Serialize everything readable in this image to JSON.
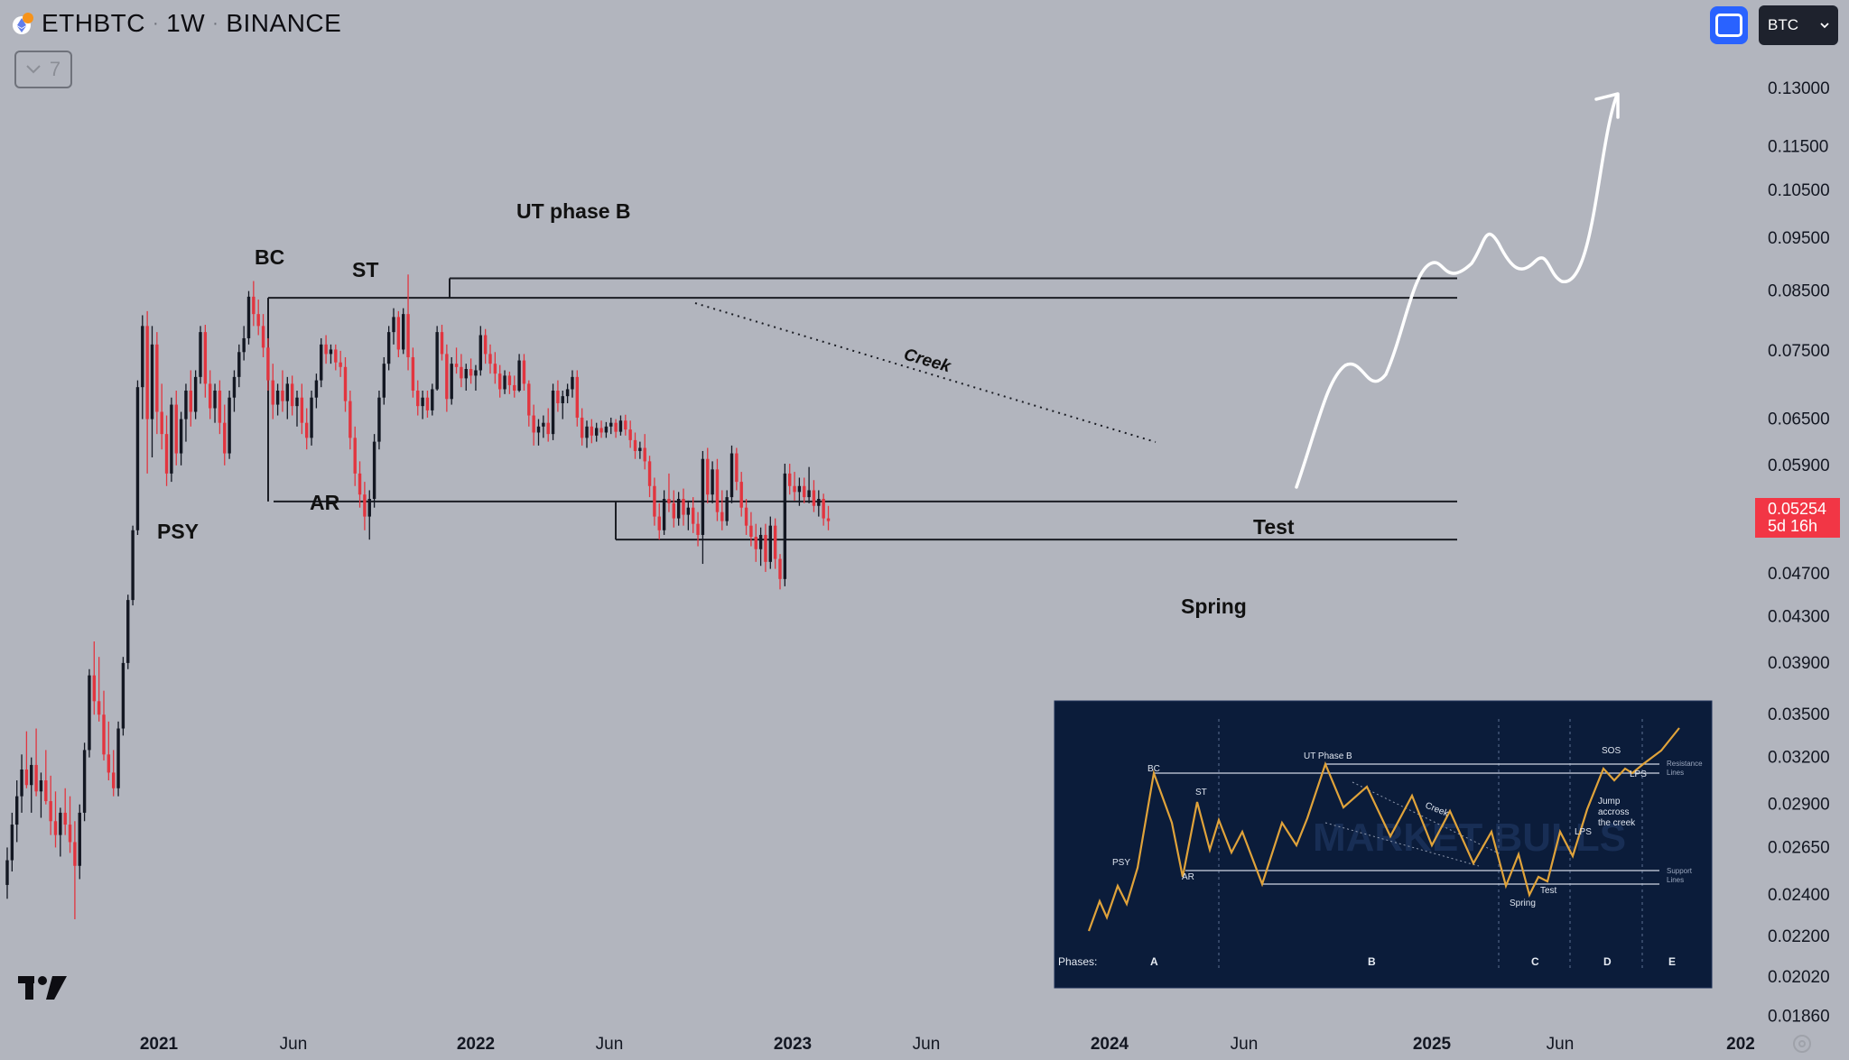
{
  "header": {
    "symbol": "ETHBTC",
    "interval": "1W",
    "exchange": "BINANCE",
    "coin_icon": "ethereum-icon",
    "collapse_count": "7"
  },
  "toolbar": {
    "fullscreen_icon": "square-frame-icon",
    "currency_select": "BTC",
    "accent": "#2962ff"
  },
  "price_tag": {
    "price": "0.05254",
    "countdown": "5d 16h",
    "color": "#f23645"
  },
  "chart_data": {
    "type": "candlestick",
    "symbol": "ETHBTC",
    "interval": "1W",
    "y_scale": "log",
    "ylim": [
      0.0178,
      0.145
    ],
    "y_ticks": [
      "0.13000",
      "0.11500",
      "0.10500",
      "0.09500",
      "0.08500",
      "0.07500",
      "0.06500",
      "0.05900",
      "0.04700",
      "0.04300",
      "0.03900",
      "0.03500",
      "0.03200",
      "0.02900",
      "0.02650",
      "0.02400",
      "0.02200",
      "0.02020",
      "0.01860"
    ],
    "x_ticks": [
      "2021",
      "Jun",
      "2022",
      "Jun",
      "2023",
      "Jun",
      "2024",
      "Jun",
      "2025",
      "Jun",
      "202"
    ],
    "up_color": "#131722",
    "down_color": "#e2353f",
    "candles": [
      {
        "o": 0.0245,
        "h": 0.0265,
        "l": 0.0238,
        "c": 0.0258
      },
      {
        "o": 0.0258,
        "h": 0.0285,
        "l": 0.0252,
        "c": 0.0278
      },
      {
        "o": 0.0278,
        "h": 0.0305,
        "l": 0.0268,
        "c": 0.0295
      },
      {
        "o": 0.0295,
        "h": 0.0322,
        "l": 0.0285,
        "c": 0.0312
      },
      {
        "o": 0.0312,
        "h": 0.0338,
        "l": 0.03,
        "c": 0.0302
      },
      {
        "o": 0.0302,
        "h": 0.032,
        "l": 0.0285,
        "c": 0.0315
      },
      {
        "o": 0.0315,
        "h": 0.034,
        "l": 0.0295,
        "c": 0.0298
      },
      {
        "o": 0.0298,
        "h": 0.031,
        "l": 0.0282,
        "c": 0.0305
      },
      {
        "o": 0.0305,
        "h": 0.0325,
        "l": 0.029,
        "c": 0.0292
      },
      {
        "o": 0.0292,
        "h": 0.0308,
        "l": 0.0272,
        "c": 0.028
      },
      {
        "o": 0.028,
        "h": 0.0298,
        "l": 0.0265,
        "c": 0.0272
      },
      {
        "o": 0.0272,
        "h": 0.0288,
        "l": 0.026,
        "c": 0.0285
      },
      {
        "o": 0.0285,
        "h": 0.03,
        "l": 0.0272,
        "c": 0.0278
      },
      {
        "o": 0.0278,
        "h": 0.0295,
        "l": 0.0262,
        "c": 0.0268
      },
      {
        "o": 0.0268,
        "h": 0.028,
        "l": 0.0228,
        "c": 0.0255
      },
      {
        "o": 0.0255,
        "h": 0.029,
        "l": 0.0248,
        "c": 0.0285
      },
      {
        "o": 0.0285,
        "h": 0.033,
        "l": 0.028,
        "c": 0.0325
      },
      {
        "o": 0.0325,
        "h": 0.0385,
        "l": 0.032,
        "c": 0.038
      },
      {
        "o": 0.038,
        "h": 0.0408,
        "l": 0.035,
        "c": 0.036
      },
      {
        "o": 0.036,
        "h": 0.0395,
        "l": 0.0345,
        "c": 0.035
      },
      {
        "o": 0.035,
        "h": 0.0368,
        "l": 0.0318,
        "c": 0.0322
      },
      {
        "o": 0.0322,
        "h": 0.0345,
        "l": 0.0305,
        "c": 0.031
      },
      {
        "o": 0.031,
        "h": 0.0325,
        "l": 0.0295,
        "c": 0.03
      },
      {
        "o": 0.03,
        "h": 0.0345,
        "l": 0.0295,
        "c": 0.034
      },
      {
        "o": 0.034,
        "h": 0.0395,
        "l": 0.0335,
        "c": 0.039
      },
      {
        "o": 0.039,
        "h": 0.045,
        "l": 0.0385,
        "c": 0.0445
      },
      {
        "o": 0.0445,
        "h": 0.052,
        "l": 0.044,
        "c": 0.0515
      },
      {
        "o": 0.0515,
        "h": 0.0705,
        "l": 0.051,
        "c": 0.0695
      },
      {
        "o": 0.0695,
        "h": 0.0808,
        "l": 0.065,
        "c": 0.079
      },
      {
        "o": 0.079,
        "h": 0.0815,
        "l": 0.058,
        "c": 0.065
      },
      {
        "o": 0.065,
        "h": 0.079,
        "l": 0.06,
        "c": 0.076
      },
      {
        "o": 0.076,
        "h": 0.078,
        "l": 0.063,
        "c": 0.066
      },
      {
        "o": 0.066,
        "h": 0.07,
        "l": 0.061,
        "c": 0.063
      },
      {
        "o": 0.063,
        "h": 0.0655,
        "l": 0.0565,
        "c": 0.058
      },
      {
        "o": 0.058,
        "h": 0.068,
        "l": 0.057,
        "c": 0.067
      },
      {
        "o": 0.067,
        "h": 0.069,
        "l": 0.059,
        "c": 0.0605
      },
      {
        "o": 0.0605,
        "h": 0.066,
        "l": 0.059,
        "c": 0.065
      },
      {
        "o": 0.065,
        "h": 0.07,
        "l": 0.062,
        "c": 0.069
      },
      {
        "o": 0.069,
        "h": 0.072,
        "l": 0.064,
        "c": 0.066
      },
      {
        "o": 0.066,
        "h": 0.072,
        "l": 0.065,
        "c": 0.071
      },
      {
        "o": 0.071,
        "h": 0.079,
        "l": 0.07,
        "c": 0.078
      },
      {
        "o": 0.078,
        "h": 0.0792,
        "l": 0.068,
        "c": 0.07
      },
      {
        "o": 0.07,
        "h": 0.072,
        "l": 0.065,
        "c": 0.0665
      },
      {
        "o": 0.0665,
        "h": 0.07,
        "l": 0.0645,
        "c": 0.069
      },
      {
        "o": 0.069,
        "h": 0.0705,
        "l": 0.063,
        "c": 0.0645
      },
      {
        "o": 0.0645,
        "h": 0.067,
        "l": 0.059,
        "c": 0.0605
      },
      {
        "o": 0.0605,
        "h": 0.069,
        "l": 0.0598,
        "c": 0.068
      },
      {
        "o": 0.068,
        "h": 0.072,
        "l": 0.066,
        "c": 0.071
      },
      {
        "o": 0.071,
        "h": 0.076,
        "l": 0.0695,
        "c": 0.0748
      },
      {
        "o": 0.0748,
        "h": 0.079,
        "l": 0.0735,
        "c": 0.077
      },
      {
        "o": 0.077,
        "h": 0.085,
        "l": 0.076,
        "c": 0.084
      },
      {
        "o": 0.084,
        "h": 0.0868,
        "l": 0.079,
        "c": 0.081
      },
      {
        "o": 0.081,
        "h": 0.0835,
        "l": 0.0775,
        "c": 0.079
      },
      {
        "o": 0.079,
        "h": 0.081,
        "l": 0.074,
        "c": 0.0755
      },
      {
        "o": 0.0755,
        "h": 0.077,
        "l": 0.069,
        "c": 0.0705
      },
      {
        "o": 0.0705,
        "h": 0.073,
        "l": 0.065,
        "c": 0.067
      },
      {
        "o": 0.067,
        "h": 0.07,
        "l": 0.0655,
        "c": 0.069
      },
      {
        "o": 0.069,
        "h": 0.072,
        "l": 0.066,
        "c": 0.0675
      },
      {
        "o": 0.0675,
        "h": 0.071,
        "l": 0.065,
        "c": 0.07
      },
      {
        "o": 0.07,
        "h": 0.0712,
        "l": 0.0655,
        "c": 0.0668
      },
      {
        "o": 0.0668,
        "h": 0.069,
        "l": 0.064,
        "c": 0.068
      },
      {
        "o": 0.068,
        "h": 0.07,
        "l": 0.063,
        "c": 0.0645
      },
      {
        "o": 0.0645,
        "h": 0.0665,
        "l": 0.061,
        "c": 0.0625
      },
      {
        "o": 0.0625,
        "h": 0.069,
        "l": 0.0615,
        "c": 0.068
      },
      {
        "o": 0.068,
        "h": 0.0715,
        "l": 0.0665,
        "c": 0.0705
      },
      {
        "o": 0.0705,
        "h": 0.077,
        "l": 0.0695,
        "c": 0.076
      },
      {
        "o": 0.076,
        "h": 0.0775,
        "l": 0.073,
        "c": 0.0745
      },
      {
        "o": 0.0745,
        "h": 0.076,
        "l": 0.073,
        "c": 0.0752
      },
      {
        "o": 0.0752,
        "h": 0.076,
        "l": 0.072,
        "c": 0.0732
      },
      {
        "o": 0.0732,
        "h": 0.075,
        "l": 0.071,
        "c": 0.0725
      },
      {
        "o": 0.0725,
        "h": 0.074,
        "l": 0.066,
        "c": 0.0675
      },
      {
        "o": 0.0675,
        "h": 0.069,
        "l": 0.061,
        "c": 0.0625
      },
      {
        "o": 0.0625,
        "h": 0.064,
        "l": 0.0565,
        "c": 0.058
      },
      {
        "o": 0.058,
        "h": 0.0595,
        "l": 0.054,
        "c": 0.0555
      },
      {
        "o": 0.0555,
        "h": 0.057,
        "l": 0.0515,
        "c": 0.053
      },
      {
        "o": 0.053,
        "h": 0.056,
        "l": 0.0505,
        "c": 0.055
      },
      {
        "o": 0.055,
        "h": 0.063,
        "l": 0.054,
        "c": 0.062
      },
      {
        "o": 0.062,
        "h": 0.069,
        "l": 0.061,
        "c": 0.068
      },
      {
        "o": 0.068,
        "h": 0.074,
        "l": 0.067,
        "c": 0.073
      },
      {
        "o": 0.073,
        "h": 0.079,
        "l": 0.072,
        "c": 0.078
      },
      {
        "o": 0.078,
        "h": 0.082,
        "l": 0.076,
        "c": 0.0805
      },
      {
        "o": 0.0805,
        "h": 0.0815,
        "l": 0.074,
        "c": 0.0752
      },
      {
        "o": 0.0752,
        "h": 0.082,
        "l": 0.0745,
        "c": 0.081
      },
      {
        "o": 0.081,
        "h": 0.088,
        "l": 0.072,
        "c": 0.074
      },
      {
        "o": 0.074,
        "h": 0.0755,
        "l": 0.068,
        "c": 0.069
      },
      {
        "o": 0.069,
        "h": 0.0705,
        "l": 0.0655,
        "c": 0.0668
      },
      {
        "o": 0.0668,
        "h": 0.069,
        "l": 0.065,
        "c": 0.068
      },
      {
        "o": 0.068,
        "h": 0.069,
        "l": 0.0652,
        "c": 0.0662
      },
      {
        "o": 0.0662,
        "h": 0.07,
        "l": 0.0655,
        "c": 0.0692
      },
      {
        "o": 0.0692,
        "h": 0.079,
        "l": 0.069,
        "c": 0.078
      },
      {
        "o": 0.078,
        "h": 0.0792,
        "l": 0.0735,
        "c": 0.0745
      },
      {
        "o": 0.0745,
        "h": 0.076,
        "l": 0.066,
        "c": 0.0678
      },
      {
        "o": 0.0678,
        "h": 0.074,
        "l": 0.067,
        "c": 0.073
      },
      {
        "o": 0.073,
        "h": 0.0755,
        "l": 0.0715,
        "c": 0.0725
      },
      {
        "o": 0.0725,
        "h": 0.0745,
        "l": 0.0695,
        "c": 0.0708
      },
      {
        "o": 0.0708,
        "h": 0.073,
        "l": 0.069,
        "c": 0.0722
      },
      {
        "o": 0.0722,
        "h": 0.0738,
        "l": 0.07,
        "c": 0.0712
      },
      {
        "o": 0.0712,
        "h": 0.0728,
        "l": 0.069,
        "c": 0.072
      },
      {
        "o": 0.072,
        "h": 0.079,
        "l": 0.0712,
        "c": 0.0775
      },
      {
        "o": 0.0775,
        "h": 0.0785,
        "l": 0.073,
        "c": 0.0745
      },
      {
        "o": 0.0745,
        "h": 0.076,
        "l": 0.0715,
        "c": 0.073
      },
      {
        "o": 0.073,
        "h": 0.0748,
        "l": 0.07,
        "c": 0.0715
      },
      {
        "o": 0.0715,
        "h": 0.0728,
        "l": 0.068,
        "c": 0.0692
      },
      {
        "o": 0.0692,
        "h": 0.072,
        "l": 0.0685,
        "c": 0.0712
      },
      {
        "o": 0.0712,
        "h": 0.0718,
        "l": 0.0685,
        "c": 0.0698
      },
      {
        "o": 0.0698,
        "h": 0.0712,
        "l": 0.068,
        "c": 0.069
      },
      {
        "o": 0.069,
        "h": 0.0745,
        "l": 0.0688,
        "c": 0.0735
      },
      {
        "o": 0.0735,
        "h": 0.0745,
        "l": 0.069,
        "c": 0.07
      },
      {
        "o": 0.07,
        "h": 0.0705,
        "l": 0.064,
        "c": 0.0655
      },
      {
        "o": 0.0655,
        "h": 0.067,
        "l": 0.0615,
        "c": 0.0632
      },
      {
        "o": 0.0632,
        "h": 0.065,
        "l": 0.0615,
        "c": 0.064
      },
      {
        "o": 0.064,
        "h": 0.0655,
        "l": 0.0625,
        "c": 0.0645
      },
      {
        "o": 0.0645,
        "h": 0.0665,
        "l": 0.062,
        "c": 0.063
      },
      {
        "o": 0.063,
        "h": 0.07,
        "l": 0.0622,
        "c": 0.069
      },
      {
        "o": 0.069,
        "h": 0.0705,
        "l": 0.066,
        "c": 0.0672
      },
      {
        "o": 0.0672,
        "h": 0.069,
        "l": 0.065,
        "c": 0.0682
      },
      {
        "o": 0.0682,
        "h": 0.07,
        "l": 0.0672,
        "c": 0.0692
      },
      {
        "o": 0.0692,
        "h": 0.072,
        "l": 0.068,
        "c": 0.071
      },
      {
        "o": 0.071,
        "h": 0.072,
        "l": 0.064,
        "c": 0.0652
      },
      {
        "o": 0.0652,
        "h": 0.0665,
        "l": 0.0615,
        "c": 0.0625
      },
      {
        "o": 0.0625,
        "h": 0.0648,
        "l": 0.0612,
        "c": 0.064
      },
      {
        "o": 0.064,
        "h": 0.065,
        "l": 0.0618,
        "c": 0.0628
      },
      {
        "o": 0.0628,
        "h": 0.0645,
        "l": 0.062,
        "c": 0.0638
      },
      {
        "o": 0.0638,
        "h": 0.0648,
        "l": 0.0625,
        "c": 0.0632
      },
      {
        "o": 0.0632,
        "h": 0.0646,
        "l": 0.0625,
        "c": 0.064
      },
      {
        "o": 0.064,
        "h": 0.0652,
        "l": 0.063,
        "c": 0.0645
      },
      {
        "o": 0.0645,
        "h": 0.065,
        "l": 0.0625,
        "c": 0.0633
      },
      {
        "o": 0.0633,
        "h": 0.0655,
        "l": 0.0628,
        "c": 0.0648
      },
      {
        "o": 0.0648,
        "h": 0.0656,
        "l": 0.0628,
        "c": 0.0636
      },
      {
        "o": 0.0636,
        "h": 0.0648,
        "l": 0.0612,
        "c": 0.0622
      },
      {
        "o": 0.0622,
        "h": 0.0632,
        "l": 0.0598,
        "c": 0.0608
      },
      {
        "o": 0.0608,
        "h": 0.062,
        "l": 0.0598,
        "c": 0.0612
      },
      {
        "o": 0.0612,
        "h": 0.063,
        "l": 0.0585,
        "c": 0.0595
      },
      {
        "o": 0.0595,
        "h": 0.0602,
        "l": 0.0552,
        "c": 0.0565
      },
      {
        "o": 0.0565,
        "h": 0.0575,
        "l": 0.052,
        "c": 0.053
      },
      {
        "o": 0.053,
        "h": 0.0545,
        "l": 0.0505,
        "c": 0.0515
      },
      {
        "o": 0.0515,
        "h": 0.056,
        "l": 0.051,
        "c": 0.055
      },
      {
        "o": 0.055,
        "h": 0.058,
        "l": 0.0535,
        "c": 0.0545
      },
      {
        "o": 0.0545,
        "h": 0.056,
        "l": 0.0518,
        "c": 0.0528
      },
      {
        "o": 0.0528,
        "h": 0.0558,
        "l": 0.052,
        "c": 0.055
      },
      {
        "o": 0.055,
        "h": 0.0562,
        "l": 0.052,
        "c": 0.0532
      },
      {
        "o": 0.0532,
        "h": 0.0548,
        "l": 0.0515,
        "c": 0.054
      },
      {
        "o": 0.054,
        "h": 0.0552,
        "l": 0.0512,
        "c": 0.0522
      },
      {
        "o": 0.0522,
        "h": 0.0535,
        "l": 0.0498,
        "c": 0.051
      },
      {
        "o": 0.051,
        "h": 0.0608,
        "l": 0.048,
        "c": 0.0598
      },
      {
        "o": 0.0598,
        "h": 0.0612,
        "l": 0.0545,
        "c": 0.0555
      },
      {
        "o": 0.0555,
        "h": 0.0595,
        "l": 0.0545,
        "c": 0.0585
      },
      {
        "o": 0.0585,
        "h": 0.0598,
        "l": 0.0525,
        "c": 0.0535
      },
      {
        "o": 0.0535,
        "h": 0.056,
        "l": 0.0515,
        "c": 0.0525
      },
      {
        "o": 0.0525,
        "h": 0.056,
        "l": 0.052,
        "c": 0.0552
      },
      {
        "o": 0.0552,
        "h": 0.0615,
        "l": 0.0545,
        "c": 0.0605
      },
      {
        "o": 0.0605,
        "h": 0.0612,
        "l": 0.056,
        "c": 0.057
      },
      {
        "o": 0.057,
        "h": 0.0582,
        "l": 0.053,
        "c": 0.054
      },
      {
        "o": 0.054,
        "h": 0.055,
        "l": 0.051,
        "c": 0.052
      },
      {
        "o": 0.052,
        "h": 0.0535,
        "l": 0.0498,
        "c": 0.0508
      },
      {
        "o": 0.0508,
        "h": 0.0522,
        "l": 0.0482,
        "c": 0.0495
      },
      {
        "o": 0.0495,
        "h": 0.0518,
        "l": 0.0478,
        "c": 0.051
      },
      {
        "o": 0.051,
        "h": 0.0522,
        "l": 0.0472,
        "c": 0.0482
      },
      {
        "o": 0.0482,
        "h": 0.053,
        "l": 0.0475,
        "c": 0.052
      },
      {
        "o": 0.052,
        "h": 0.0528,
        "l": 0.0475,
        "c": 0.0485
      },
      {
        "o": 0.0485,
        "h": 0.049,
        "l": 0.0455,
        "c": 0.0465
      },
      {
        "o": 0.0465,
        "h": 0.0592,
        "l": 0.0458,
        "c": 0.058
      },
      {
        "o": 0.058,
        "h": 0.0592,
        "l": 0.0555,
        "c": 0.0565
      },
      {
        "o": 0.0565,
        "h": 0.0582,
        "l": 0.0548,
        "c": 0.0558
      },
      {
        "o": 0.0558,
        "h": 0.0575,
        "l": 0.0542,
        "c": 0.0565
      },
      {
        "o": 0.0565,
        "h": 0.0575,
        "l": 0.0545,
        "c": 0.0552
      },
      {
        "o": 0.0552,
        "h": 0.0588,
        "l": 0.0545,
        "c": 0.056
      },
      {
        "o": 0.056,
        "h": 0.0572,
        "l": 0.0535,
        "c": 0.0542
      },
      {
        "o": 0.0542,
        "h": 0.056,
        "l": 0.053,
        "c": 0.055
      },
      {
        "o": 0.055,
        "h": 0.0556,
        "l": 0.052,
        "c": 0.0528
      },
      {
        "o": 0.0528,
        "h": 0.0542,
        "l": 0.0515,
        "c": 0.0525
      }
    ],
    "levels": [
      {
        "name": "ut-resistance",
        "value": 0.0873
      },
      {
        "name": "bc-resistance",
        "value": 0.0838
      },
      {
        "name": "ar-support",
        "value": 0.0547
      },
      {
        "name": "spring-support",
        "value": 0.0505
      }
    ],
    "annotations": [
      "PSY",
      "BC",
      "ST",
      "AR",
      "UT phase B",
      "Creek",
      "Spring",
      "Test"
    ],
    "current_price": "0.05254"
  },
  "inset": {
    "labels": [
      "BC",
      "UT Phase B",
      "ST",
      "PSY",
      "AR",
      "Creek",
      "SOS",
      "LPS",
      "LPS",
      "Jump accross the creek",
      "Spring",
      "Test",
      "Resistance Lines",
      "Support Lines"
    ],
    "phases_label": "Phases:",
    "phases": [
      "A",
      "B",
      "C",
      "D",
      "E"
    ],
    "watermark": "MARKET BULLS",
    "line_color": "#e0a33a",
    "bg": "#0b1c3a"
  },
  "logo": "tradingview-logo",
  "settings_icon": "gear-icon"
}
